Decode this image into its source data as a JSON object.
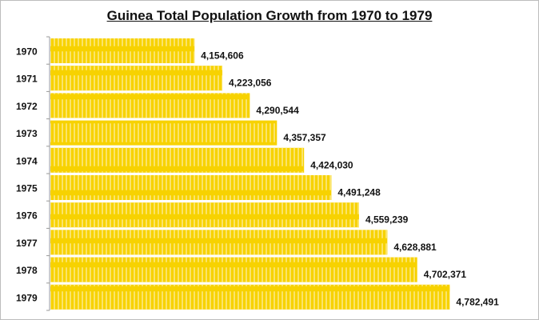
{
  "chart_data": {
    "type": "bar",
    "orientation": "horizontal",
    "title": "Guinea Total Population Growth from 1970 to 1979",
    "categories": [
      "1970",
      "1971",
      "1972",
      "1973",
      "1974",
      "1975",
      "1976",
      "1977",
      "1978",
      "1979"
    ],
    "values": [
      4154606,
      4223056,
      4290544,
      4357357,
      4424030,
      4491248,
      4559239,
      4628881,
      4702371,
      4782491
    ],
    "data_labels": [
      "4,154,606",
      "4,223,056",
      "4,290,544",
      "4,357,357",
      "4,424,030",
      "4,491,248",
      "4,559,239",
      "4,628,881",
      "4,702,371",
      "4,782,491"
    ],
    "xlim": [
      3800000,
      5000000
    ],
    "grid": false,
    "bar_color": "#f7d200",
    "stripe_color": "#fbe45a"
  }
}
